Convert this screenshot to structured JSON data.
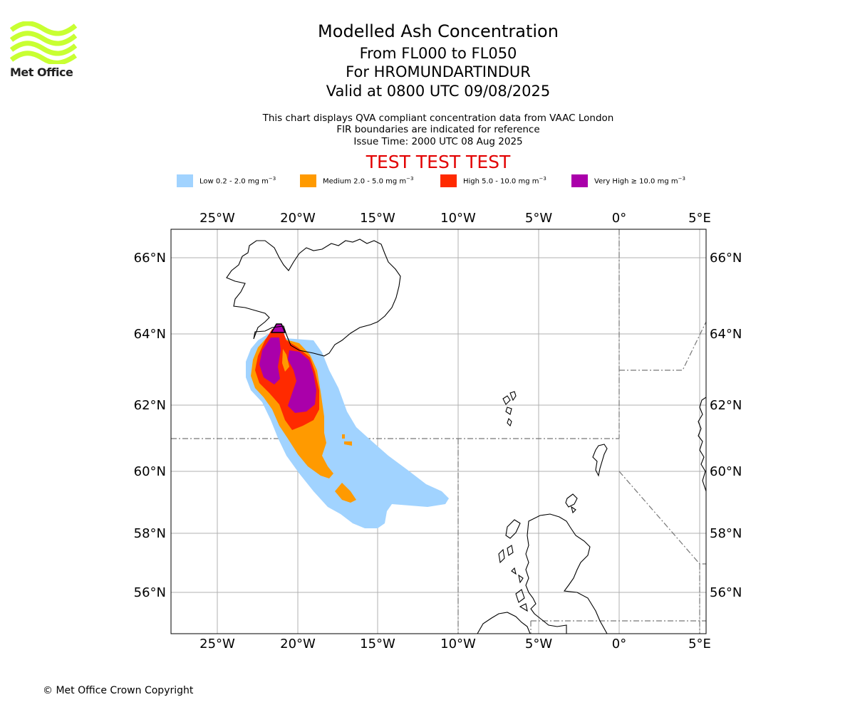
{
  "brand": {
    "logo_text": "Met Office",
    "logo_color": "#c8ff32"
  },
  "title": {
    "main": "Modelled Ash Concentration",
    "levels": "From FL000 to FL050",
    "volcano": "For HROMUNDARTINDUR",
    "valid": "Valid at 0800 UTC 09/08/2025"
  },
  "subtitle": {
    "line1": "This chart displays QVA compliant concentration data from VAAC London",
    "line2": "FIR boundaries are indicated for reference",
    "line3": "Issue Time: 2000 UTC 08 Aug 2025"
  },
  "test_banner": {
    "text": "TEST TEST TEST",
    "color": "#e20000"
  },
  "legend": [
    {
      "label": "Low 0.2 - 2.0 mg m",
      "unit_exp": "−3",
      "color": "#a1d3ff"
    },
    {
      "label": "Medium 2.0 - 5.0 mg m",
      "unit_exp": "−3",
      "color": "#ff9a00"
    },
    {
      "label": "High 5.0 - 10.0 mg m",
      "unit_exp": "−3",
      "color": "#ff2a00"
    },
    {
      "label": "Very High  ≥  10.0 mg m",
      "unit_exp": "−3",
      "color": "#aa00aa"
    }
  ],
  "map": {
    "lon_ticks": [
      "25°W",
      "20°W",
      "15°W",
      "10°W",
      "5°W",
      "0°",
      "5°E"
    ],
    "lat_ticks": [
      "66°N",
      "64°N",
      "62°N",
      "60°N",
      "58°N",
      "56°N"
    ],
    "grid": true,
    "extent": {
      "lon": [
        -28,
        5.5
      ],
      "lat": [
        54.8,
        66.9
      ]
    }
  },
  "footer": {
    "copyright": "© Met Office Crown Copyright"
  }
}
